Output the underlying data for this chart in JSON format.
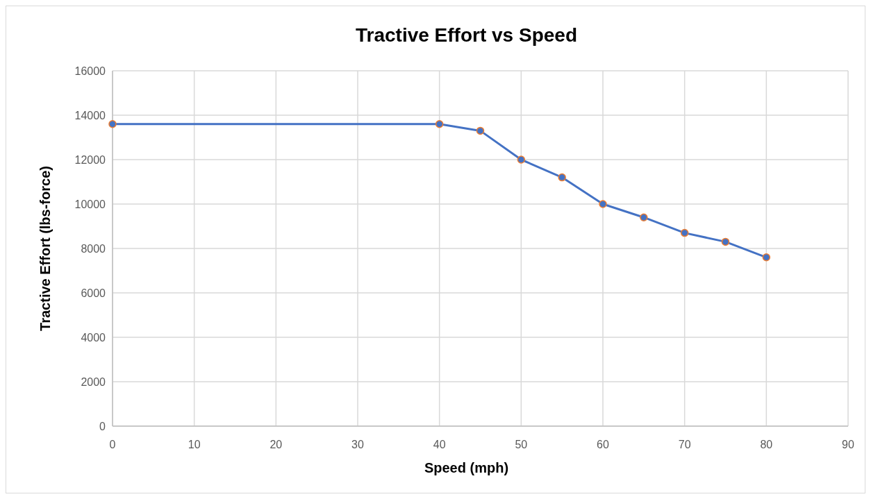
{
  "chart_data": {
    "type": "line",
    "title": "Tractive Effort vs Speed",
    "xlabel": "Speed (mph)",
    "ylabel": "Tractive Effort (lbs-force)",
    "x": [
      0,
      40,
      45,
      50,
      55,
      60,
      65,
      70,
      75,
      80
    ],
    "series": [
      {
        "color": "#4472c4",
        "values": [
          13600,
          13600,
          13300,
          12000,
          11200,
          10000,
          9400,
          8700,
          8300,
          7600
        ]
      }
    ],
    "xlim": [
      0,
      90
    ],
    "xticks": [
      0,
      10,
      20,
      30,
      40,
      50,
      60,
      70,
      80,
      90
    ],
    "ylim": [
      0,
      16000
    ],
    "yticks": [
      0,
      2000,
      4000,
      6000,
      8000,
      10000,
      12000,
      14000,
      16000
    ],
    "grid": true,
    "marker": "circle",
    "line_style": "solid"
  }
}
